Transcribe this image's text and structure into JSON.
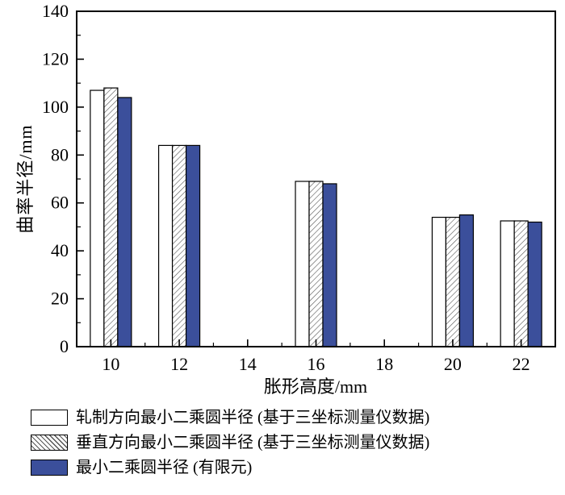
{
  "chart_data": {
    "type": "bar",
    "title": "",
    "xlabel": "胀形高度/mm",
    "ylabel": "曲率半径/mm",
    "ylim": [
      0,
      140
    ],
    "yticks": [
      0,
      20,
      40,
      60,
      80,
      100,
      120,
      140
    ],
    "ytick_minor_step": 10,
    "x_categories": [
      "10",
      "12",
      "14",
      "16",
      "18",
      "20",
      "22"
    ],
    "data_categories": [
      "10",
      "12",
      "16",
      "20",
      "22"
    ],
    "series": [
      {
        "name": "轧制方向最小二乘圆半径 (基于三坐标测量仪数据)",
        "style": "white",
        "values": [
          107,
          84,
          69,
          54,
          52.5
        ]
      },
      {
        "name": "垂直方向最小二乘圆半径 (基于三坐标测量仪数据)",
        "style": "hatched",
        "values": [
          108,
          84,
          69,
          54,
          52.5
        ]
      },
      {
        "name": "最小二乘圆半径 (有限元)",
        "style": "solid",
        "values": [
          104,
          84,
          68,
          55,
          52
        ]
      }
    ],
    "colors": {
      "solid_fill": "#3B4F9B",
      "bar_stroke": "#000000",
      "hatch_line": "#555555",
      "frame": "#000000"
    },
    "legend_position": "bottom",
    "grid": "off"
  }
}
